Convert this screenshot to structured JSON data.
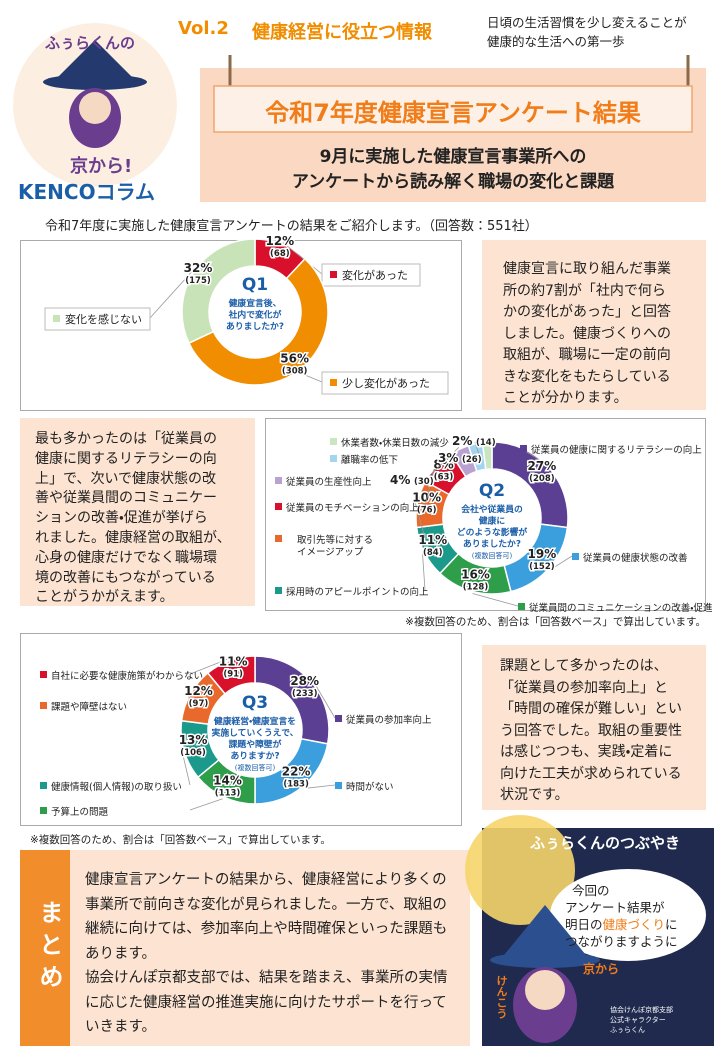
{
  "header": {
    "logo": [
      "ふぅらくんの",
      "京から!",
      "KENCOコラム"
    ],
    "vol": "Vol.2",
    "series_title": "健康経営に役立つ情報",
    "tagline": [
      "日頃の生活習慣を少し変えることが",
      "健康的な生活への第一歩"
    ],
    "title": "令和7年度健康宣言アンケート結果",
    "subtitle": [
      "9月に実施した健康宣言事業所への",
      "アンケートから読み解く職場の変化と課題"
    ]
  },
  "intro": "令和7年度に実施した健康宣言アンケートの結果をご紹介します。（回答数：551社）",
  "chart_data": [
    {
      "type": "donut",
      "title": "Q1",
      "question": [
        "健康宣言後、",
        "社内で変化が",
        "ありましたか?"
      ],
      "categories": [
        "変化があった",
        "少し変化があった",
        "変化を感じない"
      ],
      "values": [
        12,
        56,
        32
      ],
      "value_labels": [
        "12%",
        "56%",
        "32%"
      ],
      "counts": [
        68,
        308,
        175
      ],
      "count_labels": [
        "(68)",
        "(308)",
        "(175)"
      ],
      "colors": [
        "#d8102b",
        "#f18d00",
        "#c8e3b7"
      ]
    },
    {
      "type": "donut",
      "title": "Q2",
      "question": [
        "会社や従業員の",
        "健康に",
        "どのような影響が",
        "ありましたか?"
      ],
      "qualifier": "(複数回答可)",
      "categories": [
        "従業員の健康に関するリテラシーの向上",
        "従業員の健康状態の改善",
        "従業員間のコミュニケーションの改善・促進",
        "採用時のアピールポイントの向上",
        "取引先等に対する\nイメージアップ",
        "従業員のモチベーションの向上",
        "従業員の生産性向上",
        "離職率の低下",
        "休業者数・休業日数の減少"
      ],
      "values": [
        27,
        19,
        16,
        11,
        10,
        8,
        4,
        3,
        2
      ],
      "value_labels": [
        "27%",
        "19%",
        "16%",
        "11%",
        "10%",
        "8%",
        "4%",
        "3%",
        "2%"
      ],
      "counts": [
        208,
        152,
        128,
        84,
        76,
        63,
        30,
        26,
        14
      ],
      "count_labels": [
        "(208)",
        "(152)",
        "(128)",
        "(84)",
        "(76)",
        "(63)",
        "(30)",
        "(26)",
        "(14)"
      ],
      "colors": [
        "#5b3f92",
        "#3a9fdc",
        "#2e9e4a",
        "#1b9a8c",
        "#e8692b",
        "#d8102b",
        "#b9a1d0",
        "#a2d5ef",
        "#c9e6c1"
      ],
      "note": "※複数回答のため、割合は「回答数ベース」で算出しています。"
    },
    {
      "type": "donut",
      "title": "Q3",
      "question": [
        "健康経営・健康宣言を",
        "実施していくうえで、",
        "課題や障壁が",
        "ありますか?"
      ],
      "qualifier": "(複数回答可)",
      "categories": [
        "従業員の参加率向上",
        "時間がない",
        "予算上の問題",
        "健康情報(個人情報)の取り扱い",
        "課題や障壁はない",
        "自社に必要な健康施策がわからない"
      ],
      "values": [
        28,
        22,
        14,
        13,
        12,
        11
      ],
      "value_labels": [
        "28%",
        "22%",
        "14%",
        "13%",
        "12%",
        "11%"
      ],
      "counts": [
        233,
        183,
        113,
        106,
        97,
        91
      ],
      "count_labels": [
        "(233)",
        "(183)",
        "(113)",
        "(106)",
        "(97)",
        "(91)"
      ],
      "colors": [
        "#5b3f92",
        "#3a9fdc",
        "#2e9e4a",
        "#1b9a8c",
        "#e8692b",
        "#d8102b"
      ],
      "note": "※複数回答のため、割合は「回答数ベース」で算出しています。"
    }
  ],
  "findings": [
    [
      "健康宣言に取り組んだ事業",
      "所の約7割が「社内で何ら",
      "かの変化があった」と回答",
      "しました。健康づくりへの",
      "取組が、職場に一定の前向",
      "きな変化をもたらしている",
      "ことが分かります。"
    ],
    [
      "最も多かったのは「従業員の",
      "健康に関するリテラシーの向",
      "上」で、次いで健康状態の改",
      "善や従業員間のコミュニケー",
      "ションの改善・促進が挙げら",
      "れました。健康経営の取組が、",
      "心身の健康だけでなく職場環",
      "境の改善にもつながっている",
      "ことがうかがえます。"
    ],
    [
      "課題として多かったのは、",
      "「従業員の参加率向上」と",
      "「時間の確保が難しい」とい",
      "う回答でした。取組の重要性",
      "は感じつつも、実践・定着に",
      "向けた工夫が求められている",
      "状況です。"
    ]
  ],
  "summary": {
    "label": "まとめ",
    "paragraphs": [
      [
        "健康宣言アンケートの結果から、健康経営により多くの",
        "事業所で前向きな変化が見られました。一方で、取組の",
        "継続に向けては、参加率向上や時間確保といった課題も",
        "あります。"
      ],
      [
        "協会けんぽ京都支部では、結果を踏まえ、事業所の実情",
        "に応じた健康経営の推進実施に向けたサポートを行って",
        "いきます。"
      ]
    ]
  },
  "character": {
    "title": "ふぅらくんのつぶやき",
    "message": [
      "今回の",
      "アンケート結果が",
      "明日の",
      "健康づくり",
      "に",
      "つながりますように"
    ],
    "badge": [
      "けんこう",
      "京から"
    ],
    "credit": [
      "協会けんぽ京都支部",
      "公式キャラクター",
      "ふぅらくん"
    ]
  }
}
